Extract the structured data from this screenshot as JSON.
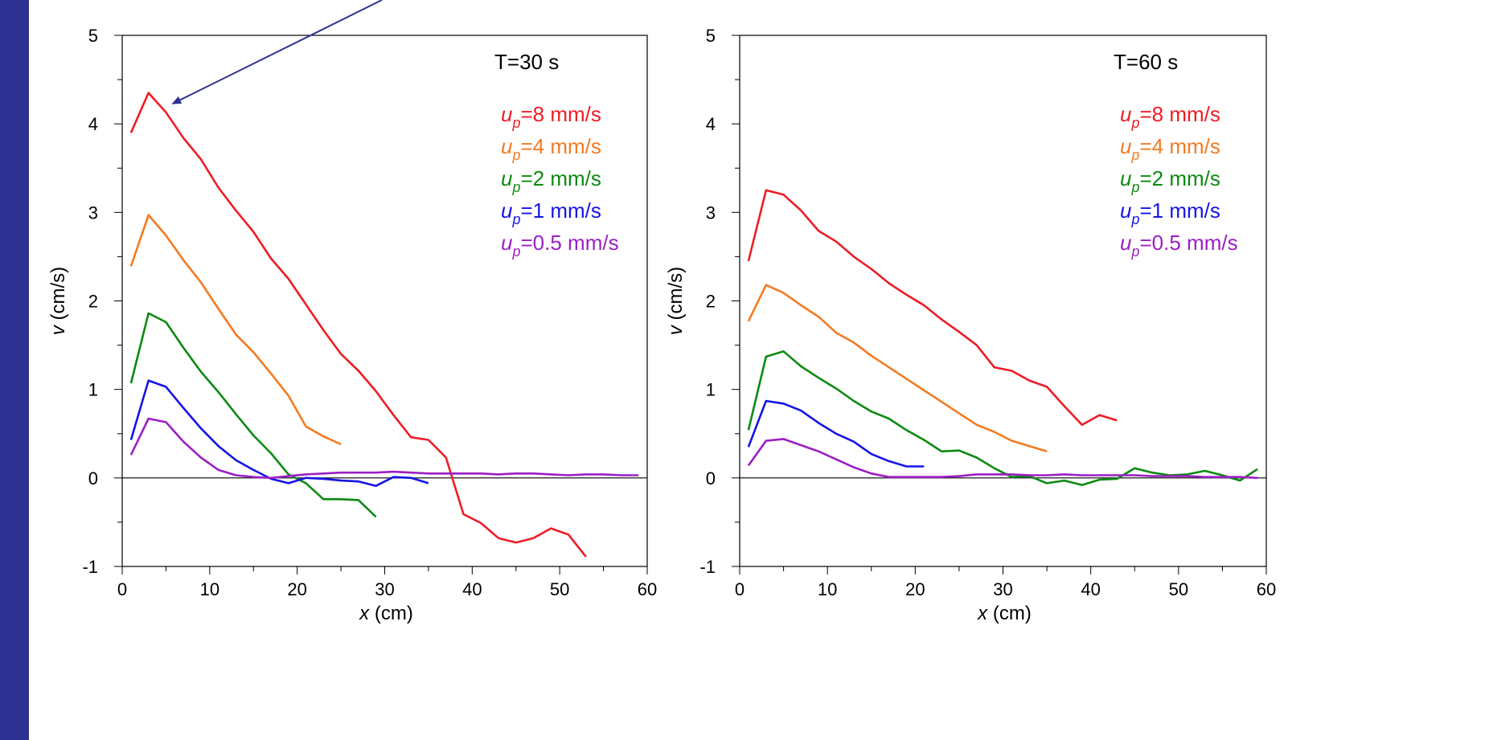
{
  "colors": {
    "accent_bar": "#2e3192",
    "arrow": "#2e3192",
    "series": [
      "#ee1c25",
      "#f47a20",
      "#0c8a12",
      "#1414e6",
      "#9b1fc4"
    ]
  },
  "chart_data": [
    {
      "type": "line",
      "title": "T=30 s",
      "xlabel": "x (cm)",
      "ylabel": "v (cm/s)",
      "xlim": [
        0,
        60
      ],
      "ylim": [
        -1,
        5
      ],
      "xticks": [
        0,
        10,
        20,
        30,
        40,
        50,
        60
      ],
      "yticks": [
        -1,
        0,
        1,
        2,
        3,
        4,
        5
      ],
      "grid": false,
      "legend": "top-right",
      "annotation": "arrow pointing to the peak of the u_p=8 mm/s curve",
      "series": [
        {
          "name": "up=8 mm/s",
          "legend_sub": "p",
          "legend_prefix": "u",
          "legend_suffix": "=8 mm/s",
          "x": [
            1,
            3,
            5,
            7,
            9,
            11,
            13,
            15,
            17,
            19,
            21,
            23,
            25,
            27,
            29,
            31,
            33,
            35,
            37,
            39,
            41,
            43,
            45,
            47,
            49,
            51,
            53
          ],
          "y": [
            3.9,
            4.35,
            4.13,
            3.84,
            3.6,
            3.28,
            3.02,
            2.78,
            2.48,
            2.25,
            1.96,
            1.67,
            1.4,
            1.21,
            0.98,
            0.71,
            0.46,
            0.43,
            0.23,
            -0.41,
            -0.51,
            -0.68,
            -0.73,
            -0.68,
            -0.57,
            -0.64,
            -0.89
          ]
        },
        {
          "name": "up=4 mm/s",
          "legend_sub": "p",
          "legend_prefix": "u",
          "legend_suffix": "=4 mm/s",
          "x": [
            1,
            3,
            5,
            7,
            9,
            11,
            13,
            15,
            17,
            19,
            21,
            23,
            25
          ],
          "y": [
            2.39,
            2.97,
            2.74,
            2.46,
            2.21,
            1.91,
            1.62,
            1.42,
            1.18,
            0.93,
            0.58,
            0.47,
            0.38
          ]
        },
        {
          "name": "up=2 mm/s",
          "legend_sub": "p",
          "legend_prefix": "u",
          "legend_suffix": "=2 mm/s",
          "x": [
            1,
            3,
            5,
            7,
            9,
            11,
            13,
            15,
            17,
            19,
            21,
            23,
            25,
            27,
            29
          ],
          "y": [
            1.07,
            1.86,
            1.76,
            1.47,
            1.2,
            0.97,
            0.72,
            0.48,
            0.28,
            0.04,
            -0.06,
            -0.24,
            -0.24,
            -0.25,
            -0.44
          ]
        },
        {
          "name": "up=1 mm/s",
          "legend_sub": "p",
          "legend_prefix": "u",
          "legend_suffix": "=1 mm/s",
          "x": [
            1,
            3,
            5,
            7,
            9,
            11,
            13,
            15,
            17,
            19,
            21,
            23,
            25,
            27,
            29,
            31,
            33,
            35
          ],
          "y": [
            0.43,
            1.1,
            1.03,
            0.79,
            0.56,
            0.36,
            0.2,
            0.09,
            -0.01,
            -0.06,
            0.0,
            -0.01,
            -0.03,
            -0.04,
            -0.09,
            0.01,
            0.0,
            -0.06
          ]
        },
        {
          "name": "up=0.5 mm/s",
          "legend_sub": "p",
          "legend_prefix": "u",
          "legend_suffix": "=0.5 mm/s",
          "x": [
            1,
            3,
            5,
            7,
            9,
            11,
            13,
            15,
            17,
            19,
            21,
            23,
            25,
            27,
            29,
            31,
            33,
            35,
            37,
            39,
            41,
            43,
            45,
            47,
            49,
            51,
            53,
            55,
            57,
            59
          ],
          "y": [
            0.26,
            0.67,
            0.63,
            0.41,
            0.23,
            0.09,
            0.03,
            0.01,
            0.0,
            0.02,
            0.04,
            0.05,
            0.06,
            0.06,
            0.06,
            0.07,
            0.06,
            0.05,
            0.05,
            0.05,
            0.05,
            0.04,
            0.05,
            0.05,
            0.04,
            0.03,
            0.04,
            0.04,
            0.03,
            0.03
          ]
        }
      ]
    },
    {
      "type": "line",
      "title": "T=60 s",
      "xlabel": "x (cm)",
      "ylabel": "v (cm/s)",
      "xlim": [
        0,
        60
      ],
      "ylim": [
        -1,
        5
      ],
      "xticks": [
        0,
        10,
        20,
        30,
        40,
        50,
        60
      ],
      "yticks": [
        -1,
        0,
        1,
        2,
        3,
        4,
        5
      ],
      "grid": false,
      "legend": "top-right",
      "series": [
        {
          "name": "up=8 mm/s",
          "legend_sub": "p",
          "legend_prefix": "u",
          "legend_suffix": "=8 mm/s",
          "x": [
            1,
            3,
            5,
            7,
            9,
            11,
            13,
            15,
            17,
            19,
            21,
            23,
            25,
            27,
            29,
            31,
            33,
            35,
            37,
            39,
            41,
            43
          ],
          "y": [
            2.45,
            3.25,
            3.2,
            3.02,
            2.79,
            2.67,
            2.5,
            2.36,
            2.2,
            2.07,
            1.95,
            1.79,
            1.65,
            1.5,
            1.25,
            1.21,
            1.1,
            1.03,
            0.81,
            0.6,
            0.71,
            0.65
          ]
        },
        {
          "name": "up=4 mm/s",
          "legend_sub": "p",
          "legend_prefix": "u",
          "legend_suffix": "=4 mm/s",
          "x": [
            1,
            3,
            5,
            7,
            9,
            11,
            13,
            15,
            17,
            19,
            21,
            23,
            25,
            27,
            29,
            31,
            33,
            35
          ],
          "y": [
            1.77,
            2.18,
            2.09,
            1.95,
            1.82,
            1.64,
            1.53,
            1.38,
            1.25,
            1.12,
            0.99,
            0.86,
            0.73,
            0.6,
            0.52,
            0.42,
            0.36,
            0.3
          ]
        },
        {
          "name": "up=2 mm/s",
          "legend_sub": "p",
          "legend_prefix": "u",
          "legend_suffix": "=2 mm/s",
          "x": [
            1,
            3,
            5,
            7,
            9,
            11,
            13,
            15,
            17,
            19,
            21,
            23,
            25,
            27,
            29,
            31,
            33,
            35,
            37,
            39,
            41,
            43,
            45,
            47,
            49,
            51,
            53,
            55,
            57,
            59
          ],
          "y": [
            0.54,
            1.37,
            1.43,
            1.26,
            1.13,
            1.01,
            0.87,
            0.75,
            0.67,
            0.54,
            0.43,
            0.3,
            0.31,
            0.23,
            0.11,
            0.01,
            0.02,
            -0.06,
            -0.03,
            -0.08,
            -0.02,
            -0.01,
            0.11,
            0.06,
            0.03,
            0.04,
            0.08,
            0.03,
            -0.03,
            0.1
          ]
        },
        {
          "name": "up=1 mm/s",
          "legend_sub": "p",
          "legend_prefix": "u",
          "legend_suffix": "=1 mm/s",
          "x": [
            1,
            3,
            5,
            7,
            9,
            11,
            13,
            15,
            17,
            19,
            21
          ],
          "y": [
            0.35,
            0.87,
            0.84,
            0.76,
            0.62,
            0.5,
            0.41,
            0.27,
            0.19,
            0.13,
            0.13
          ]
        },
        {
          "name": "up=0.5 mm/s",
          "legend_sub": "p",
          "legend_prefix": "u",
          "legend_suffix": "=0.5 mm/s",
          "x": [
            1,
            3,
            5,
            7,
            9,
            11,
            13,
            15,
            17,
            19,
            21,
            23,
            25,
            27,
            29,
            31,
            33,
            35,
            37,
            39,
            41,
            43,
            45,
            47,
            49,
            51,
            53,
            55,
            57,
            59
          ],
          "y": [
            0.14,
            0.42,
            0.44,
            0.37,
            0.3,
            0.21,
            0.12,
            0.05,
            0.01,
            0.01,
            0.01,
            0.01,
            0.02,
            0.04,
            0.04,
            0.04,
            0.03,
            0.03,
            0.04,
            0.03,
            0.03,
            0.03,
            0.03,
            0.02,
            0.02,
            0.02,
            0.01,
            0.01,
            0.01,
            0.0
          ]
        }
      ]
    }
  ]
}
